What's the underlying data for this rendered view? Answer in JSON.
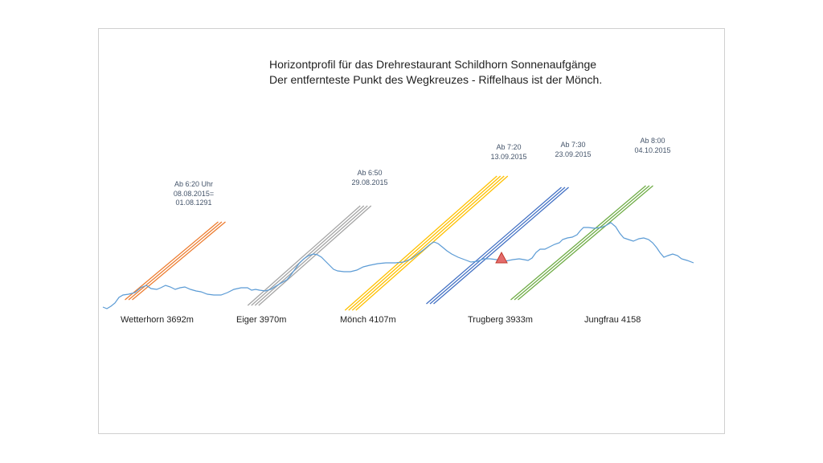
{
  "title": {
    "line1": "Horizontprofil für das Drehrestaurant Schildhorn Sonnenaufgänge",
    "line2": "Der entfernteste Punkt des Wegkreuzes - Riffelhaus ist der Mönch."
  },
  "annotations": [
    {
      "id": "a1",
      "lines": [
        "Ab 6:20 Uhr",
        "08.08.2015=",
        "01.08.1291"
      ],
      "color": "#ed7d31"
    },
    {
      "id": "a2",
      "lines": [
        "Ab 6:50",
        "29.08.2015"
      ],
      "color": "#a5a5a5"
    },
    {
      "id": "a3",
      "lines": [
        "Ab  7:20",
        "13.09.2015"
      ],
      "color": "#ffc000"
    },
    {
      "id": "a4",
      "lines": [
        "Ab 7:30",
        "23.09.2015"
      ],
      "color": "#4472c4"
    },
    {
      "id": "a5",
      "lines": [
        "Ab 8:00",
        "04.10.2015"
      ],
      "color": "#70ad47"
    }
  ],
  "peaks": [
    {
      "label": "Wetterhorn 3692m"
    },
    {
      "label": "Eiger 3970m"
    },
    {
      "label": "Mönch  4107m"
    },
    {
      "label": "Trugberg 3933m"
    },
    {
      "label": "Jungfrau 4158"
    }
  ],
  "colors": {
    "horizon": "#5b9bd5",
    "marker_fill": "#e46c6c",
    "marker_stroke": "#c0392b"
  }
}
